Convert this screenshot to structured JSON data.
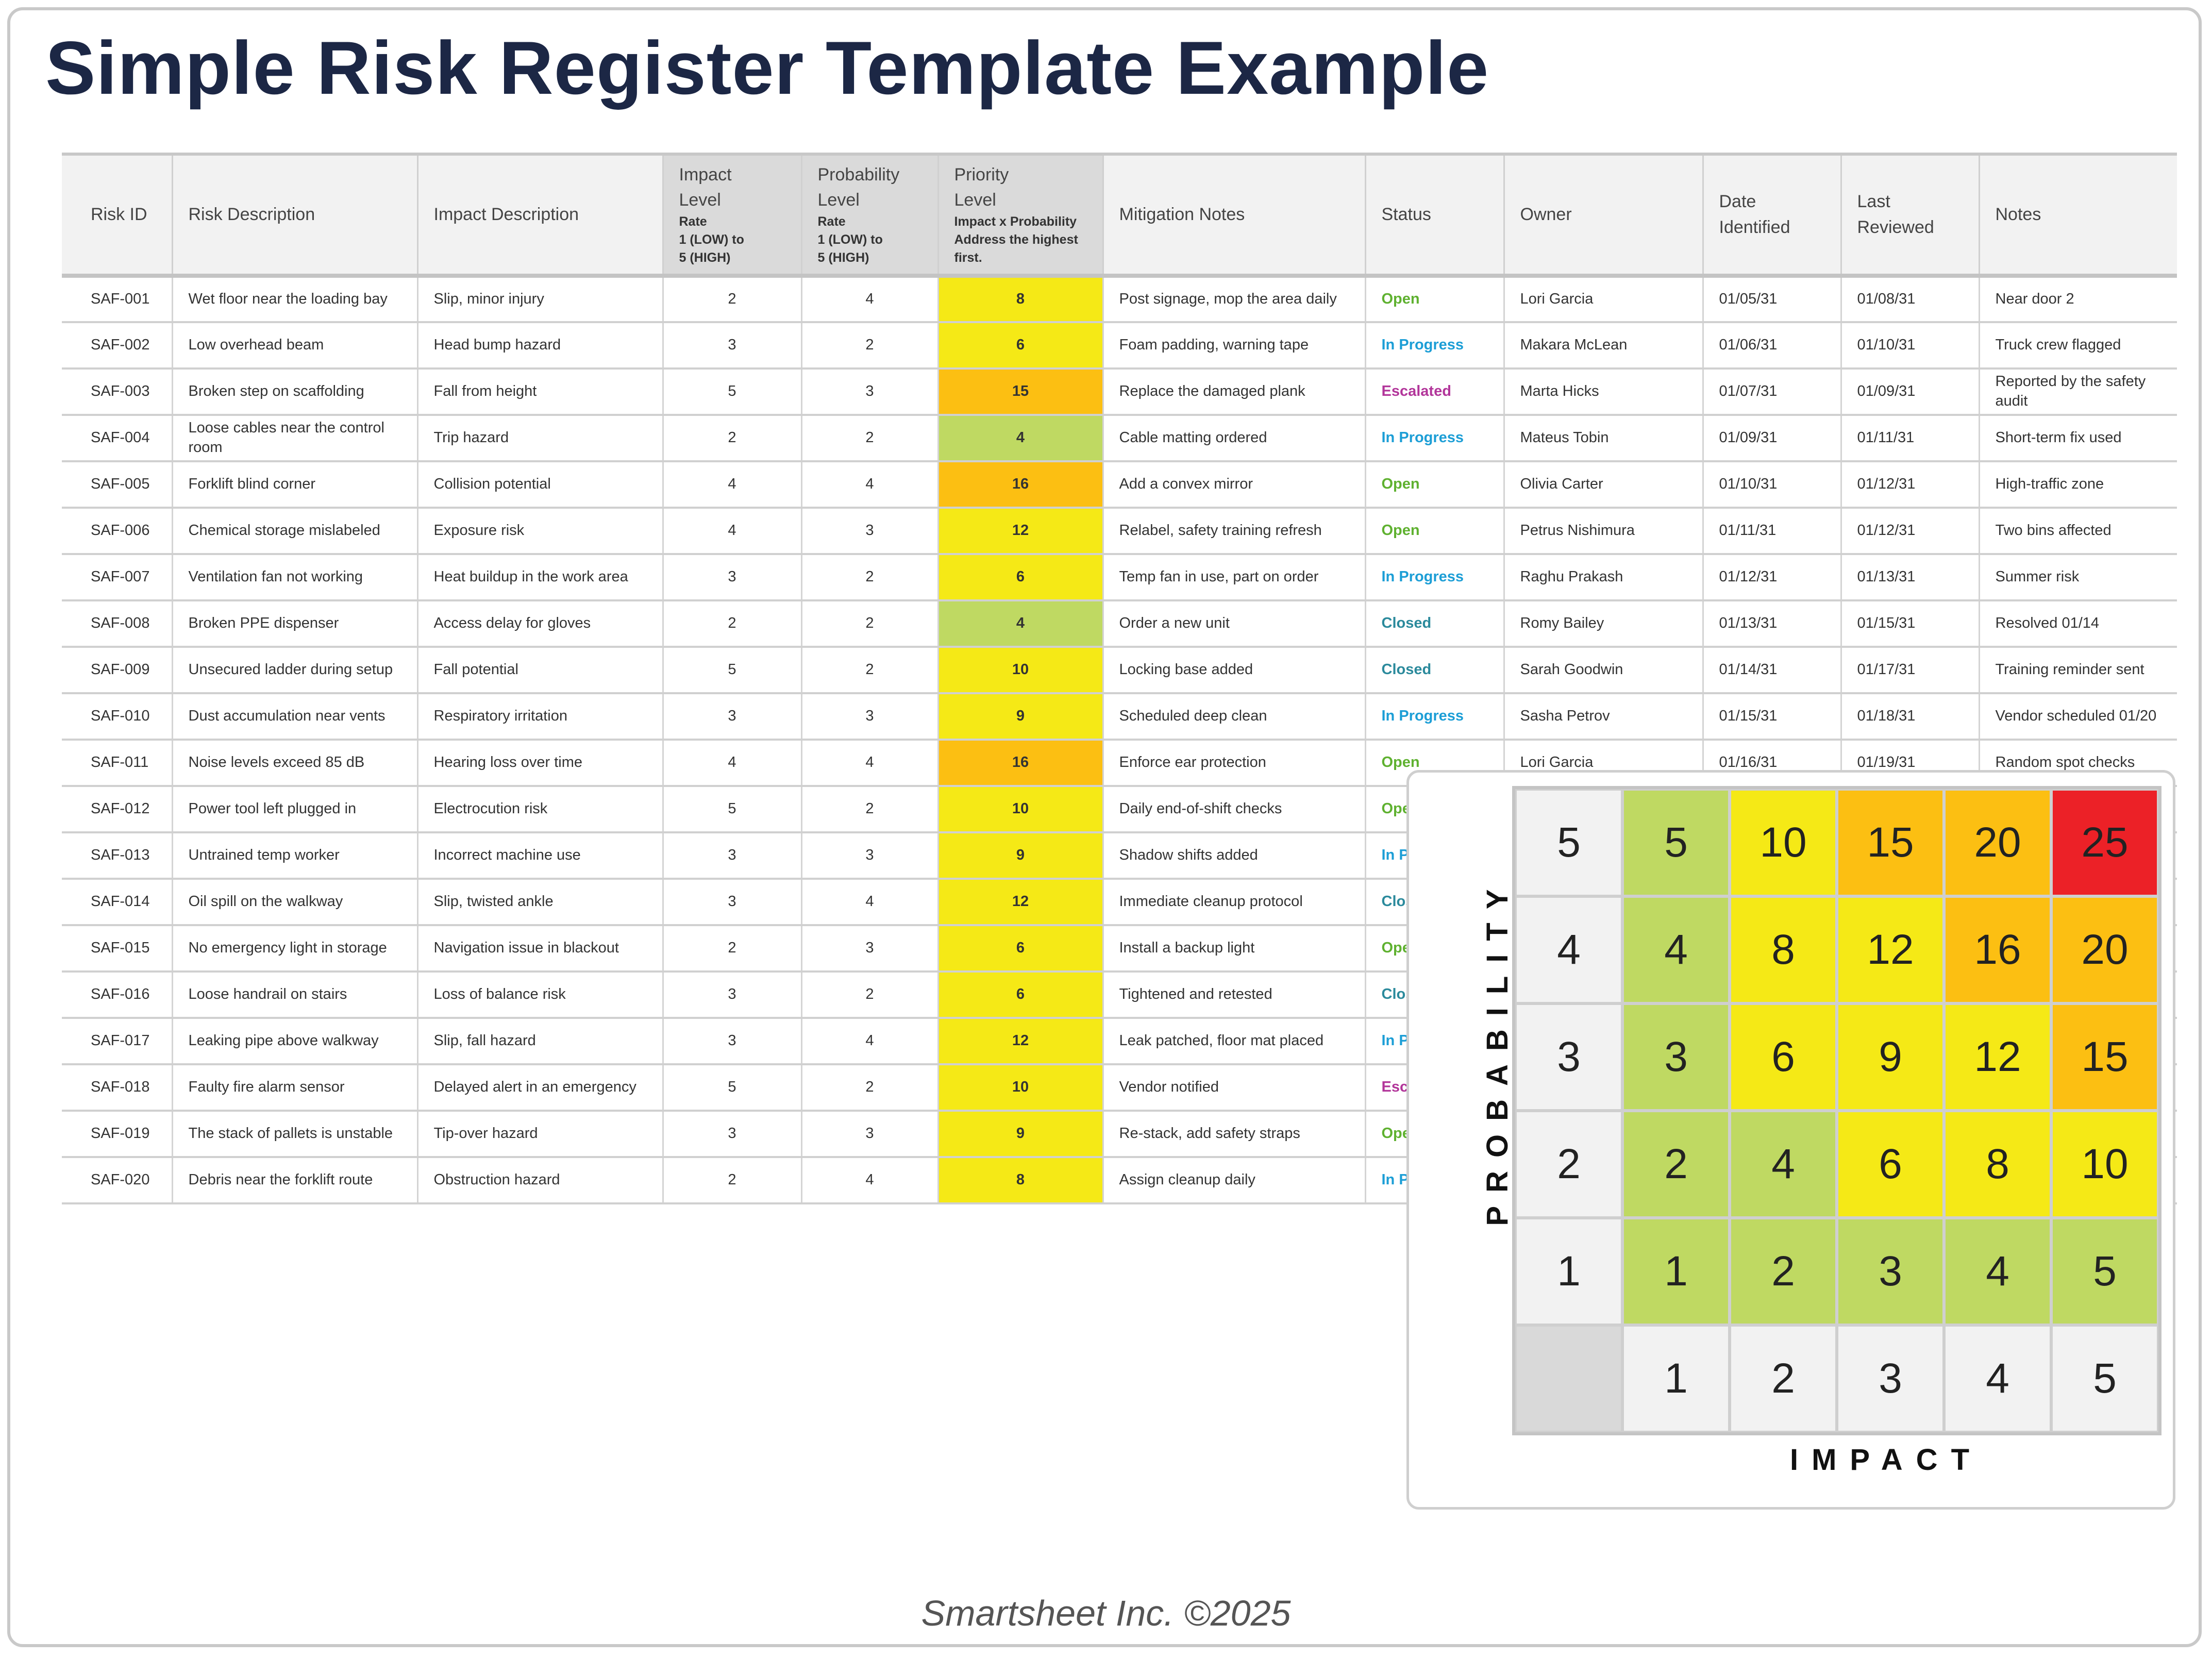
{
  "title": "Simple Risk Register Template Example",
  "columns": [
    {
      "lines": [
        "Risk ID"
      ],
      "sub": []
    },
    {
      "lines": [
        "Risk Description"
      ],
      "sub": []
    },
    {
      "lines": [
        "Impact Description"
      ],
      "sub": []
    },
    {
      "lines": [
        "Impact",
        "Level"
      ],
      "sub": [
        "Rate",
        "1 (LOW) to",
        "5 (HIGH)"
      ],
      "rate": true
    },
    {
      "lines": [
        "Probability",
        "Level"
      ],
      "sub": [
        "Rate",
        "1 (LOW) to",
        "5 (HIGH)"
      ],
      "rate": true
    },
    {
      "lines": [
        "Priority",
        "Level"
      ],
      "sub": [
        "Impact x Probability",
        "Address the highest",
        "first."
      ],
      "rate": true
    },
    {
      "lines": [
        "Mitigation Notes"
      ],
      "sub": []
    },
    {
      "lines": [
        "Status"
      ],
      "sub": []
    },
    {
      "lines": [
        "Owner"
      ],
      "sub": []
    },
    {
      "lines": [
        "Date",
        "Identified"
      ],
      "sub": []
    },
    {
      "lines": [
        "Last",
        "Reviewed"
      ],
      "sub": []
    },
    {
      "lines": [
        "Notes"
      ],
      "sub": []
    }
  ],
  "status_colors": {
    "Open": "#5fb130",
    "In Progress": "#1c9ed6",
    "Escalated": "#b2359a",
    "Closed": "#2b8a9c"
  },
  "priority_colors": {
    "low": "#bfd962",
    "medium": "#f5e916",
    "high": "#fcbf12",
    "critical": "#ec2127"
  },
  "rows": [
    {
      "id": "SAF-001",
      "risk": "Wet floor near the loading bay",
      "impact_desc": "Slip, minor injury",
      "impact": 2,
      "probability": 4,
      "priority": 8,
      "mitigation": "Post signage, mop the area daily",
      "status": "Open",
      "owner": "Lori Garcia",
      "identified": "01/05/31",
      "reviewed": "01/08/31",
      "notes": "Near door 2"
    },
    {
      "id": "SAF-002",
      "risk": "Low overhead beam",
      "impact_desc": "Head bump hazard",
      "impact": 3,
      "probability": 2,
      "priority": 6,
      "mitigation": "Foam padding, warning tape",
      "status": "In Progress",
      "owner": "Makara McLean",
      "identified": "01/06/31",
      "reviewed": "01/10/31",
      "notes": "Truck crew flagged"
    },
    {
      "id": "SAF-003",
      "risk": "Broken step on scaffolding",
      "impact_desc": "Fall from height",
      "impact": 5,
      "probability": 3,
      "priority": 15,
      "mitigation": "Replace the damaged plank",
      "status": "Escalated",
      "owner": "Marta Hicks",
      "identified": "01/07/31",
      "reviewed": "01/09/31",
      "notes": "Reported by the safety audit"
    },
    {
      "id": "SAF-004",
      "risk": "Loose cables near the control room",
      "impact_desc": "Trip hazard",
      "impact": 2,
      "probability": 2,
      "priority": 4,
      "mitigation": "Cable matting ordered",
      "status": "In Progress",
      "owner": "Mateus Tobin",
      "identified": "01/09/31",
      "reviewed": "01/11/31",
      "notes": "Short-term fix used"
    },
    {
      "id": "SAF-005",
      "risk": "Forklift blind corner",
      "impact_desc": "Collision potential",
      "impact": 4,
      "probability": 4,
      "priority": 16,
      "mitigation": "Add a convex mirror",
      "status": "Open",
      "owner": "Olivia Carter",
      "identified": "01/10/31",
      "reviewed": "01/12/31",
      "notes": "High-traffic zone"
    },
    {
      "id": "SAF-006",
      "risk": "Chemical storage mislabeled",
      "impact_desc": "Exposure risk",
      "impact": 4,
      "probability": 3,
      "priority": 12,
      "mitigation": "Relabel, safety training refresh",
      "status": "Open",
      "owner": "Petrus Nishimura",
      "identified": "01/11/31",
      "reviewed": "01/12/31",
      "notes": "Two bins affected"
    },
    {
      "id": "SAF-007",
      "risk": "Ventilation fan not working",
      "impact_desc": "Heat buildup in the work area",
      "impact": 3,
      "probability": 2,
      "priority": 6,
      "mitigation": "Temp fan in use, part on order",
      "status": "In Progress",
      "owner": "Raghu Prakash",
      "identified": "01/12/31",
      "reviewed": "01/13/31",
      "notes": "Summer risk"
    },
    {
      "id": "SAF-008",
      "risk": "Broken PPE dispenser",
      "impact_desc": "Access delay for gloves",
      "impact": 2,
      "probability": 2,
      "priority": 4,
      "mitigation": "Order a new unit",
      "status": "Closed",
      "owner": "Romy Bailey",
      "identified": "01/13/31",
      "reviewed": "01/15/31",
      "notes": "Resolved 01/14"
    },
    {
      "id": "SAF-009",
      "risk": "Unsecured ladder during setup",
      "impact_desc": "Fall potential",
      "impact": 5,
      "probability": 2,
      "priority": 10,
      "mitigation": "Locking base added",
      "status": "Closed",
      "owner": "Sarah Goodwin",
      "identified": "01/14/31",
      "reviewed": "01/17/31",
      "notes": "Training reminder sent"
    },
    {
      "id": "SAF-010",
      "risk": "Dust accumulation near vents",
      "impact_desc": "Respiratory irritation",
      "impact": 3,
      "probability": 3,
      "priority": 9,
      "mitigation": "Scheduled deep clean",
      "status": "In Progress",
      "owner": "Sasha Petrov",
      "identified": "01/15/31",
      "reviewed": "01/18/31",
      "notes": "Vendor scheduled 01/20"
    },
    {
      "id": "SAF-011",
      "risk": "Noise levels exceed 85 dB",
      "impact_desc": "Hearing loss over time",
      "impact": 4,
      "probability": 4,
      "priority": 16,
      "mitigation": "Enforce ear protection",
      "status": "Open",
      "owner": "Lori Garcia",
      "identified": "01/16/31",
      "reviewed": "01/19/31",
      "notes": "Random spot checks"
    },
    {
      "id": "SAF-012",
      "risk": "Power tool left plugged in",
      "impact_desc": "Electrocution risk",
      "impact": 5,
      "probability": 2,
      "priority": 10,
      "mitigation": "Daily end-of-shift checks",
      "status": "Open",
      "owner": "",
      "identified": "",
      "reviewed": "",
      "notes": ""
    },
    {
      "id": "SAF-013",
      "risk": "Untrained temp worker",
      "impact_desc": "Incorrect machine use",
      "impact": 3,
      "probability": 3,
      "priority": 9,
      "mitigation": "Shadow shifts added",
      "status": "In Progress",
      "owner": "",
      "identified": "",
      "reviewed": "",
      "notes": ""
    },
    {
      "id": "SAF-014",
      "risk": "Oil spill on the walkway",
      "impact_desc": "Slip, twisted ankle",
      "impact": 3,
      "probability": 4,
      "priority": 12,
      "mitigation": "Immediate cleanup protocol",
      "status": "Closed",
      "owner": "",
      "identified": "",
      "reviewed": "",
      "notes": ""
    },
    {
      "id": "SAF-015",
      "risk": "No emergency light in storage",
      "impact_desc": "Navigation issue in blackout",
      "impact": 2,
      "probability": 3,
      "priority": 6,
      "mitigation": "Install a backup light",
      "status": "Open",
      "owner": "",
      "identified": "",
      "reviewed": "",
      "notes": ""
    },
    {
      "id": "SAF-016",
      "risk": "Loose handrail on stairs",
      "impact_desc": "Loss of balance risk",
      "impact": 3,
      "probability": 2,
      "priority": 6,
      "mitigation": "Tightened and retested",
      "status": "Closed",
      "owner": "",
      "identified": "",
      "reviewed": "",
      "notes": ""
    },
    {
      "id": "SAF-017",
      "risk": "Leaking pipe above walkway",
      "impact_desc": "Slip, fall hazard",
      "impact": 3,
      "probability": 4,
      "priority": 12,
      "mitigation": "Leak patched, floor mat placed",
      "status": "In Progress",
      "owner": "",
      "identified": "",
      "reviewed": "",
      "notes": ""
    },
    {
      "id": "SAF-018",
      "risk": "Faulty fire alarm sensor",
      "impact_desc": "Delayed alert in an emergency",
      "impact": 5,
      "probability": 2,
      "priority": 10,
      "mitigation": "Vendor notified",
      "status": "Escalated",
      "owner": "",
      "identified": "",
      "reviewed": "",
      "notes": ""
    },
    {
      "id": "SAF-019",
      "risk": "The stack of pallets is unstable",
      "impact_desc": "Tip-over hazard",
      "impact": 3,
      "probability": 3,
      "priority": 9,
      "mitigation": "Re-stack, add safety straps",
      "status": "Open",
      "owner": "",
      "identified": "",
      "reviewed": "",
      "notes": ""
    },
    {
      "id": "SAF-020",
      "risk": "Debris near the forklift route",
      "impact_desc": "Obstruction hazard",
      "impact": 2,
      "probability": 4,
      "priority": 8,
      "mitigation": "Assign cleanup daily",
      "status": "In Progress",
      "owner": "",
      "identified": "",
      "reviewed": "",
      "notes": ""
    }
  ],
  "matrix": {
    "y_label": "PROBABILITY",
    "x_label": "IMPACT",
    "levels": [
      1,
      2,
      3,
      4,
      5
    ]
  },
  "footer": "Smartsheet Inc. ©2025"
}
